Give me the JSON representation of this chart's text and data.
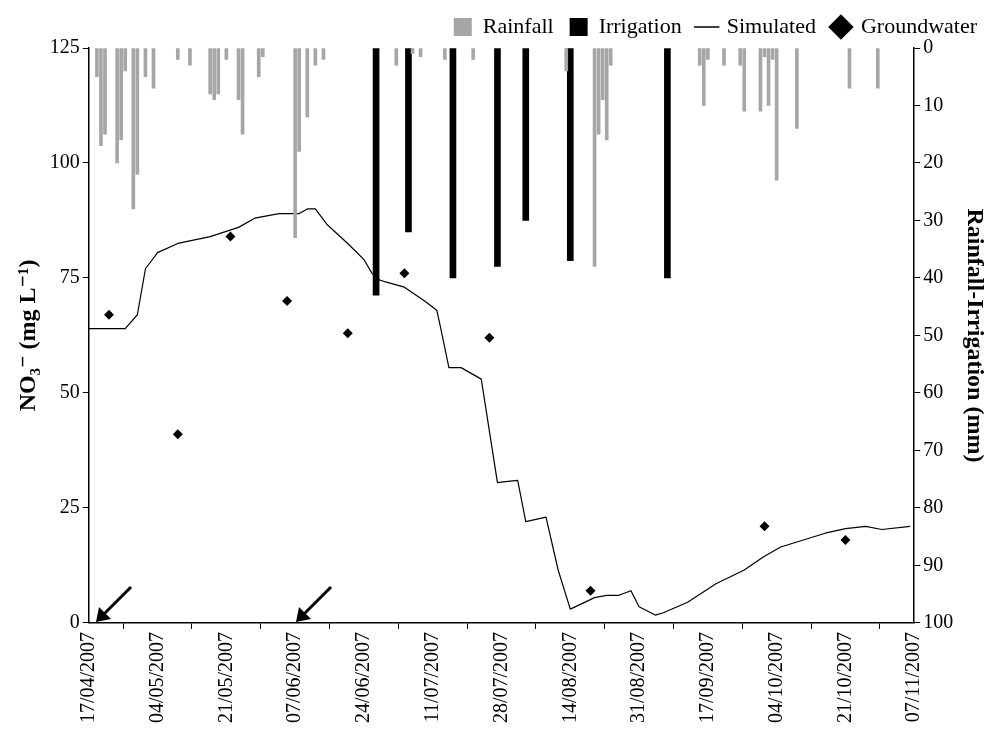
{
  "chart_data": {
    "type": "line",
    "ylabel": "NO₃⁻ (mg L⁻¹)",
    "y2label": "Rainfall-Irrigation (mm)",
    "xlim": [
      "2007-04-17",
      "2007-11-07"
    ],
    "xticks": [
      {
        "value": "2007-04-17",
        "label": "17/04/2007"
      },
      {
        "value": "2007-05-04",
        "label": "04/05/2007"
      },
      {
        "value": "2007-05-21",
        "label": "21/05/2007"
      },
      {
        "value": "2007-06-07",
        "label": "07/06/2007"
      },
      {
        "value": "2007-06-24",
        "label": "24/06/2007"
      },
      {
        "value": "2007-07-11",
        "label": "11/07/2007"
      },
      {
        "value": "2007-07-28",
        "label": "28/07/2007"
      },
      {
        "value": "2007-08-14",
        "label": "14/08/2007"
      },
      {
        "value": "2007-08-31",
        "label": "31/08/2007"
      },
      {
        "value": "2007-09-17",
        "label": "17/09/2007"
      },
      {
        "value": "2007-10-04",
        "label": "04/10/2007"
      },
      {
        "value": "2007-10-21",
        "label": "21/10/2007"
      },
      {
        "value": "2007-11-07",
        "label": "07/11/2007"
      }
    ],
    "ylim": [
      0,
      125
    ],
    "yticks": [
      0,
      25,
      50,
      75,
      100,
      125
    ],
    "y2lim": [
      100,
      0
    ],
    "y2ticks": [
      0,
      10,
      20,
      30,
      40,
      50,
      60,
      70,
      80,
      90,
      100
    ],
    "legend": "top",
    "grid": false,
    "series": [
      {
        "name": "Rainfall",
        "type": "bar",
        "axis": "y2",
        "color": "#a6a6a6",
        "x": [
          "2007-04-19",
          "2007-04-20",
          "2007-04-21",
          "2007-04-24",
          "2007-04-25",
          "2007-04-26",
          "2007-04-28",
          "2007-04-29",
          "2007-05-01",
          "2007-05-03",
          "2007-05-09",
          "2007-05-12",
          "2007-05-17",
          "2007-05-18",
          "2007-05-19",
          "2007-05-21",
          "2007-05-24",
          "2007-05-25",
          "2007-05-29",
          "2007-05-30",
          "2007-06-07",
          "2007-06-08",
          "2007-06-10",
          "2007-06-12",
          "2007-06-14",
          "2007-07-02",
          "2007-07-06",
          "2007-07-08",
          "2007-07-14",
          "2007-07-21",
          "2007-08-13",
          "2007-08-20",
          "2007-08-21",
          "2007-08-22",
          "2007-08-23",
          "2007-08-24",
          "2007-09-15",
          "2007-09-16",
          "2007-09-17",
          "2007-09-21",
          "2007-09-25",
          "2007-09-26",
          "2007-09-30",
          "2007-10-01",
          "2007-10-02",
          "2007-10-03",
          "2007-10-04",
          "2007-10-09",
          "2007-10-22",
          "2007-10-29"
        ],
        "values": [
          5,
          17,
          15,
          20,
          16,
          4,
          28,
          22,
          5,
          7,
          2,
          3,
          8,
          9,
          8,
          2,
          9,
          15,
          5,
          1.5,
          33,
          18,
          12,
          3,
          2,
          3,
          1,
          1.5,
          2,
          2,
          4,
          38,
          15,
          9,
          16,
          3,
          3,
          10,
          2,
          3,
          3,
          11,
          11,
          1.5,
          10,
          2,
          23,
          14,
          7,
          7
        ]
      },
      {
        "name": "Irrigation",
        "type": "bar",
        "axis": "y2",
        "color": "#000000",
        "x": [
          "2007-06-27",
          "2007-07-05",
          "2007-07-16",
          "2007-07-27",
          "2007-08-03",
          "2007-08-14",
          "2007-09-07"
        ],
        "values": [
          43,
          32,
          40,
          38,
          30,
          37,
          40
        ]
      },
      {
        "name": "Simulated",
        "color": "#000000",
        "marker": "none",
        "x": [
          "2007-04-17",
          "2007-04-26",
          "2007-04-29",
          "2007-05-01",
          "2007-05-04",
          "2007-05-09",
          "2007-05-17",
          "2007-05-24",
          "2007-05-28",
          "2007-06-03",
          "2007-06-08",
          "2007-06-10",
          "2007-06-12",
          "2007-06-15",
          "2007-06-20",
          "2007-06-24",
          "2007-06-26",
          "2007-06-28",
          "2007-06-30",
          "2007-07-04",
          "2007-07-09",
          "2007-07-12",
          "2007-07-13",
          "2007-07-15",
          "2007-07-18",
          "2007-07-23",
          "2007-07-27",
          "2007-08-01",
          "2007-08-03",
          "2007-08-08",
          "2007-08-11",
          "2007-08-14",
          "2007-08-20",
          "2007-08-23",
          "2007-08-26",
          "2007-08-29",
          "2007-08-31",
          "2007-09-04",
          "2007-09-06",
          "2007-09-12",
          "2007-09-19",
          "2007-09-26",
          "2007-10-01",
          "2007-10-05",
          "2007-10-16",
          "2007-10-21",
          "2007-10-26",
          "2007-10-30",
          "2007-11-06"
        ],
        "values": [
          64,
          64,
          67,
          77,
          80.5,
          82.5,
          84,
          86,
          88,
          89,
          89,
          90,
          90,
          86.5,
          82.5,
          79,
          76,
          74.5,
          74,
          73,
          70,
          68,
          64,
          55.5,
          55.5,
          53,
          30.5,
          31,
          22,
          23,
          11.5,
          3,
          5.5,
          6,
          6,
          7,
          3.5,
          1.7,
          2.2,
          4.5,
          8.5,
          11.5,
          14.5,
          16.5,
          19.5,
          20.5,
          21,
          20.3,
          21
        ]
      },
      {
        "name": "Groundwater",
        "type": "scatter",
        "color": "#000000",
        "marker": "diamond",
        "x": [
          "2007-04-22",
          "2007-05-09",
          "2007-05-22",
          "2007-06-05",
          "2007-06-20",
          "2007-07-04",
          "2007-07-25",
          "2007-08-19",
          "2007-10-01",
          "2007-10-21"
        ],
        "values": [
          67,
          41,
          84,
          70,
          63,
          76,
          62,
          7,
          21,
          18
        ]
      }
    ]
  }
}
